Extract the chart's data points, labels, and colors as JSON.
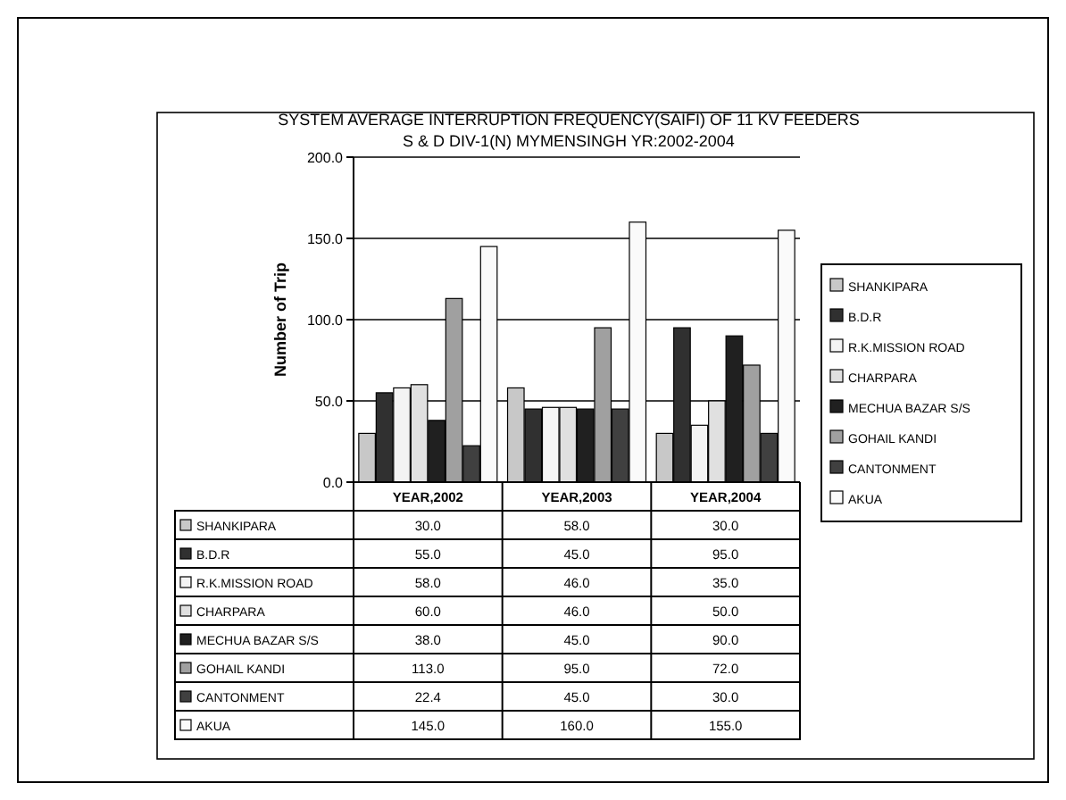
{
  "chart_data": {
    "type": "bar",
    "title": "SYSTEM AVERAGE INTERRUPTION FREQUENCY(SAIFI) OF 11 KV FEEDERS",
    "subtitle": "S & D DIV-1(N) MYMENSINGH YR:2002-2004",
    "ylabel": "Number of Trip",
    "categories": [
      "YEAR,2002",
      "YEAR,2003",
      "YEAR,2004"
    ],
    "series": [
      {
        "name": "SHANKIPARA",
        "color": "#c8c8c8",
        "values": [
          30.0,
          58.0,
          30.0
        ],
        "value_labels": [
          "30.0",
          "58.0",
          "30.0"
        ]
      },
      {
        "name": "B.D.R",
        "color": "#303030",
        "values": [
          55.0,
          45.0,
          95.0
        ],
        "value_labels": [
          "55.0",
          "45.0",
          "95.0"
        ]
      },
      {
        "name": "R.K.MISSION ROAD",
        "color": "#f4f4f4",
        "values": [
          58.0,
          46.0,
          35.0
        ],
        "value_labels": [
          "58.0",
          "46.0",
          "35.0"
        ]
      },
      {
        "name": "CHARPARA",
        "color": "#e0e0e0",
        "values": [
          60.0,
          46.0,
          50.0
        ],
        "value_labels": [
          "60.0",
          "46.0",
          "50.0"
        ]
      },
      {
        "name": "MECHUA BAZAR S/S",
        "color": "#202020",
        "values": [
          38.0,
          45.0,
          90.0
        ],
        "value_labels": [
          "38.0",
          "45.0",
          "90.0"
        ]
      },
      {
        "name": "GOHAIL KANDI",
        "color": "#a0a0a0",
        "values": [
          113.0,
          95.0,
          72.0
        ],
        "value_labels": [
          "113.0",
          "95.0",
          "72.0"
        ]
      },
      {
        "name": "CANTONMENT",
        "color": "#404040",
        "values": [
          22.4,
          45.0,
          30.0
        ],
        "value_labels": [
          "22.4",
          "45.0",
          "30.0"
        ]
      },
      {
        "name": "AKUA",
        "color": "#fafafa",
        "values": [
          145.0,
          160.0,
          155.0
        ],
        "value_labels": [
          "145.0",
          "160.0",
          "155.0"
        ]
      }
    ],
    "ylim": [
      0,
      200
    ],
    "yticks": [
      {
        "value": 0,
        "label": "0.0"
      },
      {
        "value": 50,
        "label": "50.0"
      },
      {
        "value": 100,
        "label": "100.0"
      },
      {
        "value": 150,
        "label": "150.0"
      },
      {
        "value": 200,
        "label": "200.0"
      }
    ],
    "grid": "y",
    "legend": "right"
  }
}
